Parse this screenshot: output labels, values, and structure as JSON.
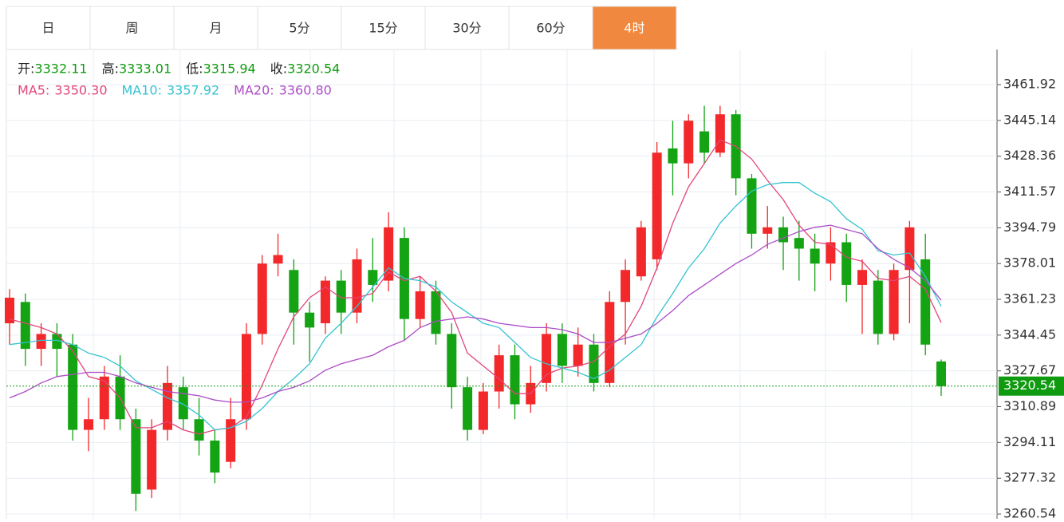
{
  "tabs": {
    "items": [
      "日",
      "周",
      "月",
      "5分",
      "15分",
      "30分",
      "60分",
      "4时"
    ],
    "active": 7,
    "active_color": "#f0893f"
  },
  "chart_data": {
    "type": "candlestick",
    "up_color": "#f2282a",
    "down_color": "#13a313",
    "value_color": "#109a10",
    "ohlc_labels": [
      "开:",
      "高:",
      "低:",
      "收:"
    ],
    "ohlc": {
      "open": [
        3350,
        3360,
        3338,
        3345,
        3340,
        3300,
        3305,
        3325,
        3305,
        3272,
        3300,
        3320,
        3305,
        3295,
        3285,
        3305,
        3345,
        3378,
        3375,
        3355,
        3350,
        3370,
        3355,
        3375,
        3370,
        3390,
        3352,
        3365,
        3345,
        3320,
        3300,
        3318,
        3335,
        3312,
        3322,
        3345,
        3330,
        3340,
        3322,
        3360,
        3372,
        3380,
        3432,
        3425,
        3440,
        3430,
        3448,
        3418,
        3392,
        3395,
        3390,
        3385,
        3378,
        3388,
        3368,
        3370,
        3345,
        3375,
        3380,
        3332.11
      ],
      "high": [
        3366,
        3364,
        3350,
        3350,
        3345,
        3315,
        3330,
        3335,
        3310,
        3305,
        3330,
        3325,
        3315,
        3300,
        3315,
        3350,
        3382,
        3392,
        3380,
        3360,
        3372,
        3375,
        3385,
        3390,
        3402,
        3395,
        3372,
        3370,
        3350,
        3325,
        3322,
        3340,
        3340,
        3330,
        3350,
        3350,
        3348,
        3345,
        3365,
        3380,
        3398,
        3435,
        3445,
        3448,
        3452,
        3452,
        3450,
        3420,
        3405,
        3400,
        3398,
        3392,
        3395,
        3392,
        3380,
        3375,
        3378,
        3398,
        3392,
        3333.01
      ],
      "low": [
        3340,
        3330,
        3330,
        3325,
        3295,
        3290,
        3300,
        3300,
        3262,
        3268,
        3295,
        3300,
        3288,
        3275,
        3282,
        3300,
        3340,
        3372,
        3340,
        3332,
        3345,
        3345,
        3350,
        3360,
        3365,
        3342,
        3348,
        3340,
        3310,
        3295,
        3298,
        3310,
        3305,
        3308,
        3318,
        3322,
        3325,
        3318,
        3320,
        3340,
        3370,
        3375,
        3410,
        3418,
        3425,
        3428,
        3410,
        3385,
        3385,
        3375,
        3370,
        3365,
        3370,
        3360,
        3345,
        3340,
        3342,
        3350,
        3335,
        3315.94
      ],
      "close": [
        3362,
        3338,
        3345,
        3338,
        3300,
        3305,
        3325,
        3305,
        3270,
        3300,
        3322,
        3305,
        3295,
        3280,
        3305,
        3345,
        3378,
        3382,
        3355,
        3348,
        3370,
        3355,
        3380,
        3368,
        3395,
        3352,
        3365,
        3345,
        3320,
        3300,
        3318,
        3335,
        3312,
        3322,
        3345,
        3330,
        3340,
        3322,
        3360,
        3375,
        3395,
        3430,
        3425,
        3445,
        3430,
        3448,
        3418,
        3392,
        3395,
        3388,
        3385,
        3378,
        3388,
        3368,
        3375,
        3345,
        3375,
        3395,
        3340,
        3320.54
      ]
    },
    "series": [
      {
        "name": "MA5:",
        "color": "#e2457a",
        "last": {
          "value": 3350.3,
          "label": "3350.30"
        },
        "values": [
          3352,
          3350,
          3348,
          3345,
          3337,
          3325,
          3323,
          3315,
          3301,
          3301,
          3304,
          3300,
          3298,
          3300,
          3301,
          3306,
          3321,
          3338,
          3353,
          3362,
          3367,
          3362,
          3362,
          3364,
          3374,
          3370,
          3372,
          3365,
          3355,
          3336,
          3330,
          3324,
          3317,
          3317,
          3326,
          3329,
          3330,
          3332,
          3339,
          3345,
          3358,
          3376,
          3397,
          3414,
          3425,
          3436,
          3433,
          3427,
          3417,
          3408,
          3396,
          3388,
          3387,
          3381,
          3379,
          3371,
          3370,
          3372,
          3366,
          3350.3
        ]
      },
      {
        "name": "MA10:",
        "color": "#34c3d1",
        "last": {
          "value": 3357.92,
          "label": "3357.92"
        },
        "values": [
          3340,
          3341,
          3342,
          3342,
          3340,
          3336,
          3334,
          3330,
          3323,
          3319,
          3315,
          3312,
          3307,
          3300,
          3301,
          3304,
          3310,
          3318,
          3324,
          3331,
          3343,
          3350,
          3358,
          3367,
          3376,
          3371,
          3370,
          3367,
          3360,
          3355,
          3350,
          3348,
          3341,
          3334,
          3331,
          3329,
          3327,
          3324,
          3328,
          3334,
          3340,
          3353,
          3364,
          3376,
          3385,
          3397,
          3405,
          3412,
          3415,
          3416,
          3416,
          3411,
          3407,
          3399,
          3394,
          3384,
          3382,
          3383,
          3372,
          3357.92
        ]
      },
      {
        "name": "MA20:",
        "color": "#ad4cc6",
        "last": {
          "value": 3360.8,
          "label": "3360.80"
        },
        "values": [
          3315,
          3318,
          3322,
          3325,
          3326,
          3327,
          3327,
          3325,
          3322,
          3320,
          3318,
          3317,
          3316,
          3314,
          3313,
          3313,
          3315,
          3318,
          3320,
          3323,
          3328,
          3331,
          3333,
          3335,
          3339,
          3342,
          3348,
          3351,
          3352,
          3353,
          3352,
          3350,
          3349,
          3348,
          3348,
          3347,
          3345,
          3341,
          3341,
          3343,
          3345,
          3350,
          3356,
          3363,
          3368,
          3373,
          3378,
          3382,
          3387,
          3390,
          3393,
          3395,
          3396,
          3394,
          3392,
          3385,
          3380,
          3376,
          3370,
          3360.8
        ]
      }
    ],
    "ylim": [
      3258.3,
      3478.4
    ],
    "yticks": [
      3461.92,
      3445.14,
      3428.36,
      3411.57,
      3394.79,
      3378.01,
      3361.23,
      3344.45,
      3327.67,
      3310.89,
      3294.11,
      3277.32,
      3260.54
    ],
    "grid": true
  }
}
